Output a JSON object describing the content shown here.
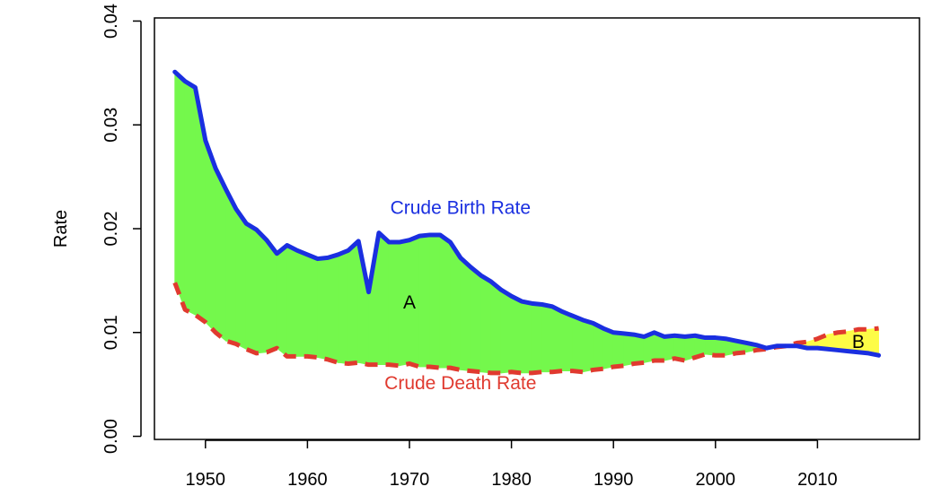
{
  "chart_data": {
    "type": "line",
    "title": "",
    "xlabel": "",
    "ylabel": "Rate",
    "xlim": [
      1945,
      2020
    ],
    "ylim": [
      -0.0003,
      0.0403
    ],
    "x_ticks": [
      "1950",
      "1960",
      "1970",
      "1980",
      "1990",
      "2000",
      "2010"
    ],
    "y_ticks": [
      "0.00",
      "0.01",
      "0.02",
      "0.03",
      "0.04"
    ],
    "x": [
      1947,
      1948,
      1949,
      1950,
      1951,
      1952,
      1953,
      1954,
      1955,
      1956,
      1957,
      1958,
      1959,
      1960,
      1961,
      1962,
      1963,
      1964,
      1965,
      1966,
      1967,
      1968,
      1969,
      1970,
      1971,
      1972,
      1973,
      1974,
      1975,
      1976,
      1977,
      1978,
      1979,
      1980,
      1981,
      1982,
      1983,
      1984,
      1985,
      1986,
      1987,
      1988,
      1989,
      1990,
      1991,
      1992,
      1993,
      1994,
      1995,
      1996,
      1997,
      1998,
      1999,
      2000,
      2001,
      2002,
      2003,
      2004,
      2005,
      2006,
      2007,
      2008,
      2009,
      2010,
      2011,
      2012,
      2013,
      2014,
      2015,
      2016
    ],
    "series": [
      {
        "name": "Crude Birth Rate",
        "color": "#1a2fe0",
        "style": "solid",
        "values": [
          0.0351,
          0.0342,
          0.0336,
          0.0285,
          0.0258,
          0.0238,
          0.0219,
          0.0205,
          0.0199,
          0.0189,
          0.0176,
          0.0184,
          0.0179,
          0.0175,
          0.0171,
          0.0172,
          0.0175,
          0.0179,
          0.0188,
          0.0139,
          0.0196,
          0.0187,
          0.0187,
          0.0189,
          0.0193,
          0.0194,
          0.0194,
          0.0187,
          0.0172,
          0.0163,
          0.0155,
          0.0149,
          0.0141,
          0.0135,
          0.013,
          0.0128,
          0.0127,
          0.0125,
          0.012,
          0.0116,
          0.0112,
          0.0109,
          0.0104,
          0.01,
          0.0099,
          0.0098,
          0.0096,
          0.01,
          0.0096,
          0.0097,
          0.0096,
          0.0097,
          0.0095,
          0.0095,
          0.0094,
          0.0092,
          0.009,
          0.0088,
          0.0085,
          0.0087,
          0.0087,
          0.0087,
          0.0085,
          0.0085,
          0.0084,
          0.0083,
          0.0082,
          0.0081,
          0.008,
          0.0078
        ]
      },
      {
        "name": "Crude Death Rate",
        "color": "#e03a2f",
        "style": "dashed",
        "values": [
          0.0148,
          0.0122,
          0.0117,
          0.011,
          0.01,
          0.0092,
          0.0089,
          0.0084,
          0.008,
          0.0081,
          0.0085,
          0.0077,
          0.0077,
          0.0077,
          0.0076,
          0.0074,
          0.0071,
          0.007,
          0.0071,
          0.0069,
          0.0069,
          0.0069,
          0.0068,
          0.007,
          0.0067,
          0.0067,
          0.0066,
          0.0066,
          0.0064,
          0.0063,
          0.0062,
          0.0061,
          0.0061,
          0.0062,
          0.0061,
          0.0061,
          0.0062,
          0.0062,
          0.0063,
          0.0063,
          0.0062,
          0.0064,
          0.0065,
          0.0067,
          0.0068,
          0.007,
          0.0071,
          0.0073,
          0.0073,
          0.0075,
          0.0073,
          0.0076,
          0.0079,
          0.0078,
          0.0078,
          0.008,
          0.0081,
          0.0083,
          0.0084,
          0.0086,
          0.0087,
          0.009,
          0.0091,
          0.0094,
          0.0098,
          0.01,
          0.0101,
          0.0103,
          0.0103,
          0.0104
        ]
      }
    ],
    "fills": [
      {
        "name": "A",
        "color": "#74f84c",
        "description": "birth rate above death rate"
      },
      {
        "name": "B",
        "color": "#fdfc46",
        "description": "death rate above birth rate"
      }
    ],
    "annotations": [
      {
        "text": "Crude Birth Rate",
        "x": 1975,
        "y": 0.0219,
        "color": "#1a2fe0"
      },
      {
        "text": "Crude Death Rate",
        "x": 1975,
        "y": 0.005,
        "color": "#e03a2f"
      },
      {
        "text": "A",
        "x": 1970,
        "y": 0.0128,
        "color": "#000000"
      },
      {
        "text": "B",
        "x": 2014,
        "y": 0.009,
        "color": "#000000"
      }
    ],
    "grid": false
  }
}
